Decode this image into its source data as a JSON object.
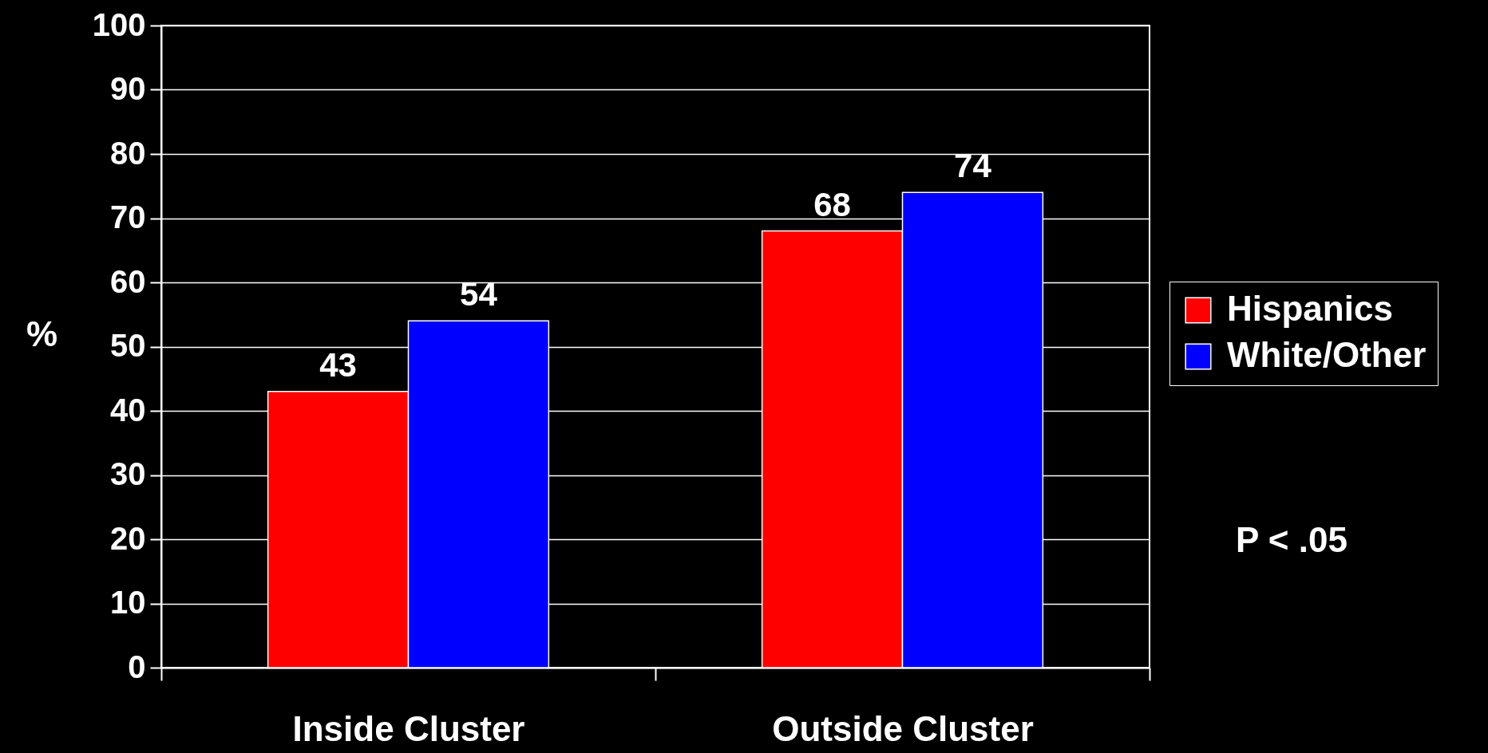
{
  "chart_data": {
    "type": "bar",
    "categories": [
      "Inside Cluster",
      "Outside Cluster"
    ],
    "series": [
      {
        "name": "Hispanics",
        "color": "#ff0000",
        "values": [
          43,
          68
        ]
      },
      {
        "name": "White/Other",
        "color": "#0000ff",
        "values": [
          54,
          74
        ]
      }
    ],
    "ylabel": "%",
    "ylim": [
      0,
      100
    ],
    "yticks": [
      0,
      10,
      20,
      30,
      40,
      50,
      60,
      70,
      80,
      90,
      100
    ],
    "grid": "y",
    "legend": "right",
    "data_labels": true,
    "annotations": [
      "P < .05"
    ]
  }
}
